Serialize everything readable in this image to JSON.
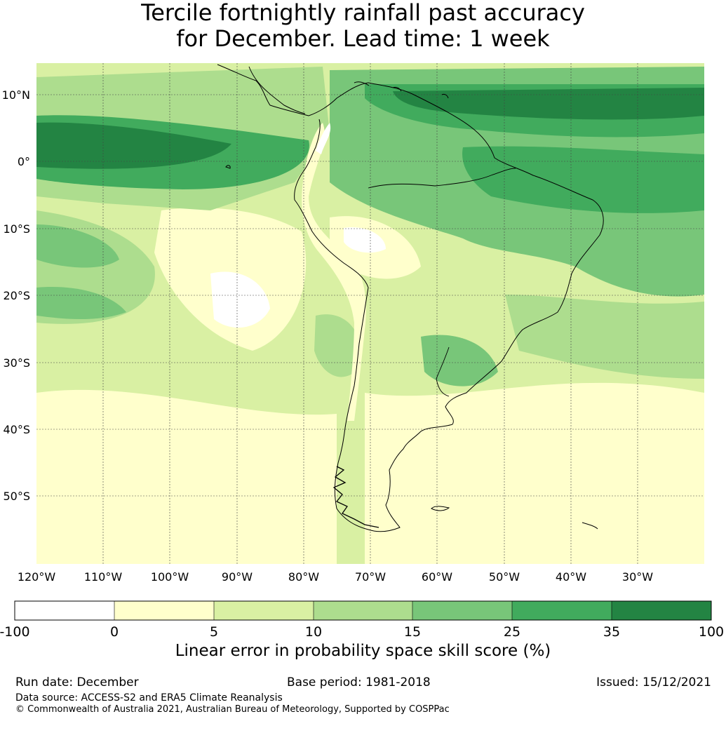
{
  "title": {
    "line1": "Tercile fortnightly rainfall past accuracy",
    "line2": "for December. Lead time: 1 week"
  },
  "map": {
    "lat_ticks": [
      "10°N",
      "0°",
      "10°S",
      "20°S",
      "30°S",
      "40°S",
      "50°S"
    ],
    "lon_ticks": [
      "120°W",
      "110°W",
      "100°W",
      "90°W",
      "80°W",
      "70°W",
      "60°W",
      "50°W",
      "40°W",
      "30°W"
    ],
    "lat_values": [
      10,
      0,
      -10,
      -20,
      -30,
      -40,
      -50
    ],
    "lon_values": [
      -120,
      -110,
      -100,
      -90,
      -80,
      -70,
      -60,
      -50,
      -40,
      -30
    ],
    "extent": {
      "lon": [
        -121,
        -21
      ],
      "lat": [
        -60,
        15
      ]
    },
    "gridlines": true,
    "land_outline_color": "#000000"
  },
  "colorbar": {
    "ticks": [
      "-100",
      "0",
      "5",
      "10",
      "15",
      "25",
      "35",
      "100"
    ],
    "colors": [
      "#ffffff",
      "#ffffcc",
      "#d9f0a3",
      "#addd8e",
      "#78c679",
      "#41ab5d",
      "#238443"
    ],
    "label": "Linear error in probability space skill score (%)"
  },
  "footer": {
    "run_date": "Run date: December",
    "base_period": "Base period: 1981-2018",
    "issued": "Issued: 15/12/2021",
    "data_source": "Data source: ACCESS-S2 and ERA5 Climate Reanalysis",
    "copyright": "© Commonwealth of Australia 2021, Australian Bureau of Meteorology, Supported by COSPPac"
  }
}
